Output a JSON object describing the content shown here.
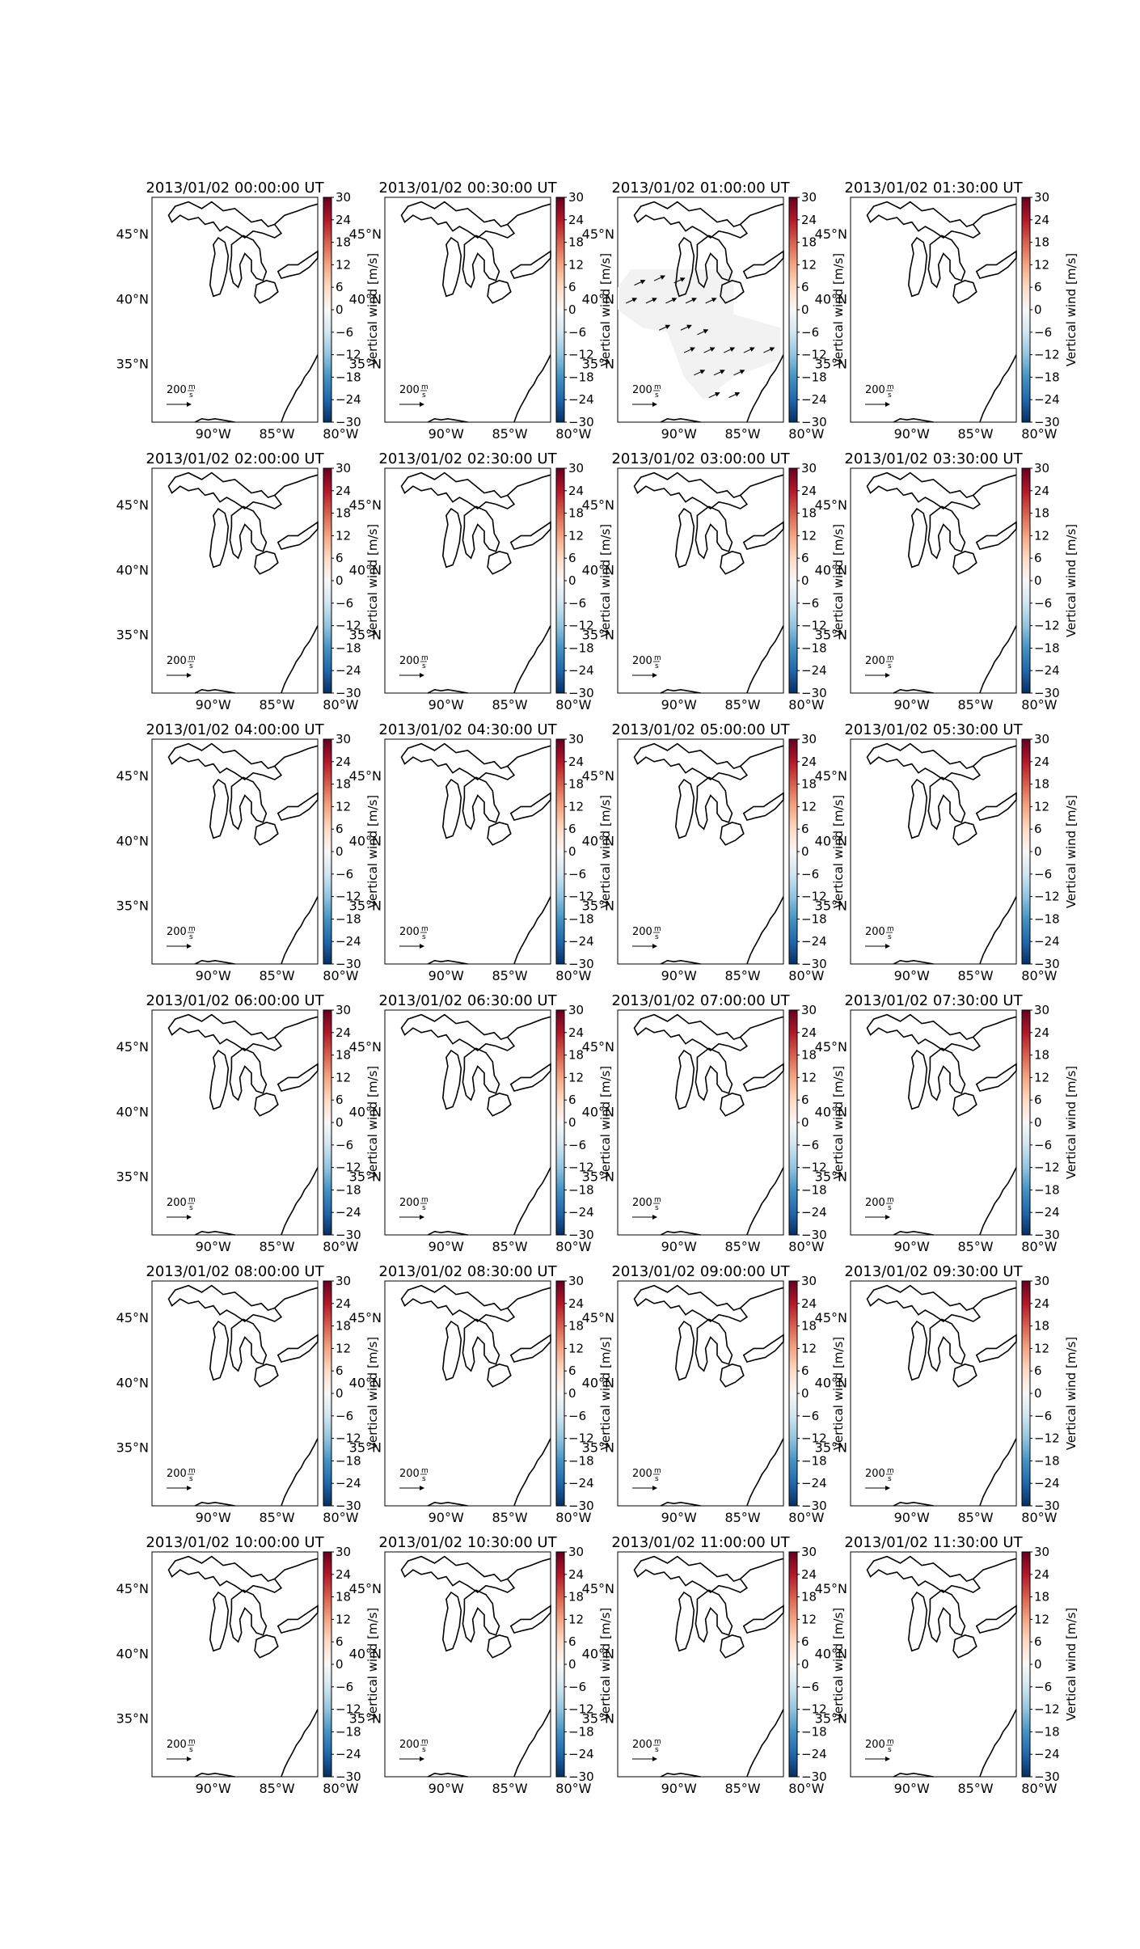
{
  "colorbar": {
    "label": "Vertical wind [m/s]",
    "ticks": [
      "30",
      "24",
      "18",
      "12",
      "6",
      "0",
      "−6",
      "−12",
      "−18",
      "−24",
      "−30"
    ],
    "range": [
      -30,
      30
    ],
    "colormap_stops": [
      "#053061",
      "#2166ac",
      "#4393c3",
      "#92c5de",
      "#d1e5f0",
      "#f7f7f7",
      "#fddbc7",
      "#f4a582",
      "#d6604d",
      "#b2182b",
      "#67001f"
    ]
  },
  "axes": {
    "lat_ticks": [
      "45°N",
      "40°N",
      "35°N"
    ],
    "lon_ticks": [
      "90°W",
      "85°W",
      "80°W"
    ],
    "lat_range": [
      30.5,
      47.8
    ],
    "lon_range": [
      -94.8,
      -81.8
    ]
  },
  "quiver_key": {
    "value": "200",
    "unit_num": "m",
    "unit_den": "s"
  },
  "chart_data": [
    {
      "type": "vector-map",
      "title": "2013/01/02 00:00:00 UT"
    },
    {
      "type": "vector-map",
      "title": "2013/01/02 00:30:00 UT"
    },
    {
      "type": "vector-map",
      "title": "2013/01/02 01:00:00 UT",
      "has_vectors": true
    },
    {
      "type": "vector-map",
      "title": "2013/01/02 01:30:00 UT"
    },
    {
      "type": "vector-map",
      "title": "2013/01/02 02:00:00 UT"
    },
    {
      "type": "vector-map",
      "title": "2013/01/02 02:30:00 UT"
    },
    {
      "type": "vector-map",
      "title": "2013/01/02 03:00:00 UT"
    },
    {
      "type": "vector-map",
      "title": "2013/01/02 03:30:00 UT"
    },
    {
      "type": "vector-map",
      "title": "2013/01/02 04:00:00 UT"
    },
    {
      "type": "vector-map",
      "title": "2013/01/02 04:30:00 UT"
    },
    {
      "type": "vector-map",
      "title": "2013/01/02 05:00:00 UT"
    },
    {
      "type": "vector-map",
      "title": "2013/01/02 05:30:00 UT"
    },
    {
      "type": "vector-map",
      "title": "2013/01/02 06:00:00 UT"
    },
    {
      "type": "vector-map",
      "title": "2013/01/02 06:30:00 UT"
    },
    {
      "type": "vector-map",
      "title": "2013/01/02 07:00:00 UT"
    },
    {
      "type": "vector-map",
      "title": "2013/01/02 07:30:00 UT"
    },
    {
      "type": "vector-map",
      "title": "2013/01/02 08:00:00 UT"
    },
    {
      "type": "vector-map",
      "title": "2013/01/02 08:30:00 UT"
    },
    {
      "type": "vector-map",
      "title": "2013/01/02 09:00:00 UT"
    },
    {
      "type": "vector-map",
      "title": "2013/01/02 09:30:00 UT"
    },
    {
      "type": "vector-map",
      "title": "2013/01/02 10:00:00 UT"
    },
    {
      "type": "vector-map",
      "title": "2013/01/02 10:30:00 UT"
    },
    {
      "type": "vector-map",
      "title": "2013/01/02 11:00:00 UT"
    },
    {
      "type": "vector-map",
      "title": "2013/01/02 11:30:00 UT"
    }
  ]
}
